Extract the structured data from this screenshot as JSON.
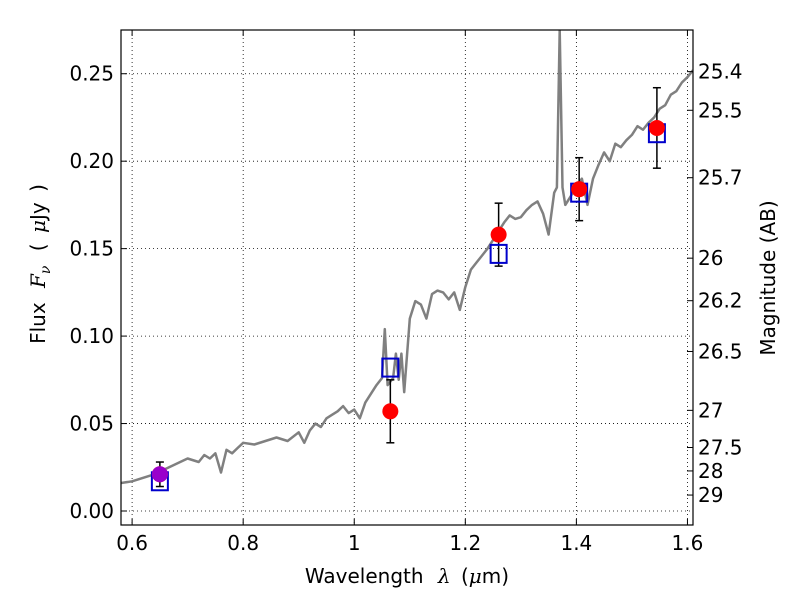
{
  "chart_data": {
    "type": "scatter",
    "xlabel": "Wavelength",
    "xlabel_symbol": "λ",
    "xlabel_unit_open": "(",
    "xlabel_unit_mu": "μ",
    "xlabel_unit_rest": "m)",
    "ylabel": "Flux",
    "ylabel_symbol": "F",
    "ylabel_subscript": "ν",
    "ylabel_unit_open": "(",
    "ylabel_unit_mu": "μ",
    "ylabel_unit_rest": "Jy",
    "ylabel_unit_close": ")",
    "y2label": "Magnitude (AB)",
    "xlim": [
      0.58,
      1.61
    ],
    "ylim": [
      -0.008,
      0.275
    ],
    "x_ticks": [
      0.6,
      0.8,
      1.0,
      1.2,
      1.4,
      1.6
    ],
    "x_tick_labels": [
      "0.6",
      "0.8",
      "1",
      "1.2",
      "1.4",
      "1.6"
    ],
    "y_ticks": [
      0.0,
      0.05,
      0.1,
      0.15,
      0.2,
      0.25
    ],
    "y_tick_labels": [
      "0.00",
      "0.05",
      "0.10",
      "0.15",
      "0.20",
      "0.25"
    ],
    "mag_ticks": [
      25.4,
      25.5,
      25.7,
      26,
      26.2,
      26.5,
      27,
      27.5,
      28,
      29
    ],
    "mag_tick_labels": [
      "25.4",
      "25.5",
      "25.7",
      "26",
      "26.2",
      "26.5",
      "27",
      "27.5",
      "28",
      "29"
    ],
    "grid": true,
    "series": [
      {
        "name": "model spectrum",
        "kind": "line",
        "color": "#808080",
        "x": [
          0.58,
          0.6,
          0.62,
          0.64,
          0.66,
          0.68,
          0.7,
          0.72,
          0.73,
          0.74,
          0.75,
          0.76,
          0.77,
          0.78,
          0.79,
          0.8,
          0.82,
          0.84,
          0.86,
          0.88,
          0.9,
          0.91,
          0.92,
          0.93,
          0.94,
          0.95,
          0.96,
          0.97,
          0.98,
          0.99,
          1.0,
          1.01,
          1.02,
          1.03,
          1.04,
          1.05,
          1.055,
          1.06,
          1.07,
          1.075,
          1.08,
          1.085,
          1.09,
          1.1,
          1.11,
          1.12,
          1.13,
          1.14,
          1.15,
          1.16,
          1.17,
          1.18,
          1.19,
          1.2,
          1.21,
          1.22,
          1.23,
          1.24,
          1.25,
          1.26,
          1.27,
          1.28,
          1.29,
          1.3,
          1.31,
          1.32,
          1.33,
          1.34,
          1.35,
          1.36,
          1.365,
          1.37,
          1.375,
          1.38,
          1.39,
          1.4,
          1.41,
          1.42,
          1.43,
          1.44,
          1.45,
          1.46,
          1.47,
          1.48,
          1.49,
          1.5,
          1.51,
          1.52,
          1.53,
          1.54,
          1.55,
          1.56,
          1.57,
          1.58,
          1.59,
          1.6,
          1.61
        ],
        "y": [
          0.016,
          0.017,
          0.019,
          0.021,
          0.024,
          0.027,
          0.03,
          0.028,
          0.032,
          0.03,
          0.033,
          0.022,
          0.035,
          0.033,
          0.036,
          0.039,
          0.038,
          0.04,
          0.042,
          0.04,
          0.045,
          0.039,
          0.046,
          0.05,
          0.048,
          0.053,
          0.055,
          0.057,
          0.06,
          0.056,
          0.058,
          0.053,
          0.062,
          0.067,
          0.072,
          0.076,
          0.104,
          0.072,
          0.076,
          0.09,
          0.075,
          0.09,
          0.068,
          0.11,
          0.12,
          0.118,
          0.11,
          0.124,
          0.126,
          0.125,
          0.121,
          0.125,
          0.115,
          0.128,
          0.138,
          0.142,
          0.146,
          0.15,
          0.155,
          0.16,
          0.165,
          0.169,
          0.167,
          0.168,
          0.172,
          0.175,
          0.177,
          0.17,
          0.158,
          0.182,
          0.185,
          0.275,
          0.185,
          0.175,
          0.18,
          0.186,
          0.19,
          0.175,
          0.19,
          0.198,
          0.205,
          0.2,
          0.21,
          0.208,
          0.212,
          0.215,
          0.22,
          0.218,
          0.222,
          0.225,
          0.23,
          0.232,
          0.238,
          0.24,
          0.245,
          0.248,
          0.252
        ]
      },
      {
        "name": "observed photometry",
        "kind": "points_with_errors",
        "color": "#ff0000",
        "x": [
          0.65,
          1.065,
          1.26,
          1.405,
          1.545
        ],
        "y": [
          0.021,
          0.057,
          0.158,
          0.184,
          0.219
        ],
        "yerr": [
          0.007,
          0.018,
          0.018,
          0.018,
          0.023
        ]
      },
      {
        "name": "model photometry",
        "kind": "open_squares",
        "color": "#0000cc",
        "x": [
          0.65,
          1.065,
          1.26,
          1.405,
          1.545
        ],
        "y": [
          0.017,
          0.082,
          0.147,
          0.182,
          0.216
        ]
      },
      {
        "name": "purple point",
        "kind": "point",
        "color": "#9900cc",
        "x": [
          0.65
        ],
        "y": [
          0.021
        ]
      }
    ]
  }
}
